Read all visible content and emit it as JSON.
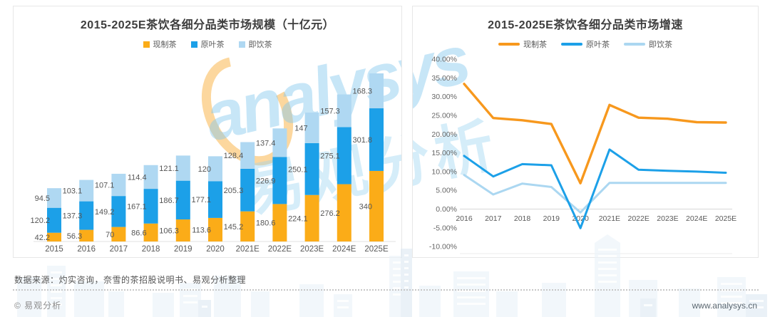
{
  "page": {
    "watermark": {
      "brand_script": "analysys",
      "brand_cjk": "易观分析"
    },
    "footer": {
      "source_note": "数据来源：灼实咨询，奈雪的茶招股说明书、易观分析整理",
      "copyright": "© 易观分析",
      "website": "www.analysys.cn"
    }
  },
  "chart_data": [
    {
      "type": "bar",
      "stacked": true,
      "title": "2015-2025E茶饮各细分品类市场规模（十亿元）",
      "unit": "十亿元",
      "legend_position": "top",
      "grid": false,
      "categories": [
        "2015",
        "2016",
        "2017",
        "2018",
        "2019",
        "2020",
        "2021E",
        "2022E",
        "2023E",
        "2024E",
        "2025E"
      ],
      "ylim": [
        0,
        850
      ],
      "series": [
        {
          "name": "现制茶",
          "color": "#FBAC18",
          "values": [
            42.2,
            56.3,
            70,
            86.6,
            106.3,
            113.6,
            145.2,
            180.6,
            224.1,
            276.2,
            340
          ]
        },
        {
          "name": "原叶茶",
          "color": "#1CA0E8",
          "values": [
            120.2,
            137.3,
            149.2,
            167.1,
            186.7,
            177.1,
            205.3,
            226.9,
            250.1,
            275.1,
            301.8
          ]
        },
        {
          "name": "即饮茶",
          "color": "#AFD8F2",
          "values": [
            94.5,
            103.1,
            107.1,
            114.4,
            121.1,
            120,
            128.4,
            137.4,
            147,
            157.3,
            168.3
          ]
        }
      ]
    },
    {
      "type": "line",
      "title": "2015-2025E茶饮各细分品类市场增速",
      "legend_position": "top",
      "grid": false,
      "categories": [
        "2016",
        "2017",
        "2018",
        "2019",
        "2020",
        "2021E",
        "2022E",
        "2023E",
        "2024E",
        "2025E"
      ],
      "ylim": [
        -10,
        40
      ],
      "ytick_step": 5,
      "ytick_labels": [
        "40.00%",
        "35.00%",
        "30.00%",
        "25.00%",
        "20.00%",
        "15.00%",
        "10.00%",
        "5.00%",
        "0.00%",
        "-5.00%",
        "-10.00%"
      ],
      "series": [
        {
          "name": "现制茶",
          "color": "#F7981D",
          "values": [
            33.4,
            24.3,
            23.7,
            22.7,
            6.9,
            27.8,
            24.4,
            24.1,
            23.2,
            23.1
          ]
        },
        {
          "name": "原叶茶",
          "color": "#1CA0E8",
          "values": [
            14.2,
            8.7,
            12,
            11.7,
            -5.1,
            15.9,
            10.5,
            10.2,
            10,
            9.7
          ]
        },
        {
          "name": "即饮茶",
          "color": "#ABD7F1",
          "values": [
            9.1,
            3.9,
            6.8,
            5.9,
            -0.9,
            7,
            7,
            7,
            7,
            7
          ]
        }
      ]
    }
  ]
}
